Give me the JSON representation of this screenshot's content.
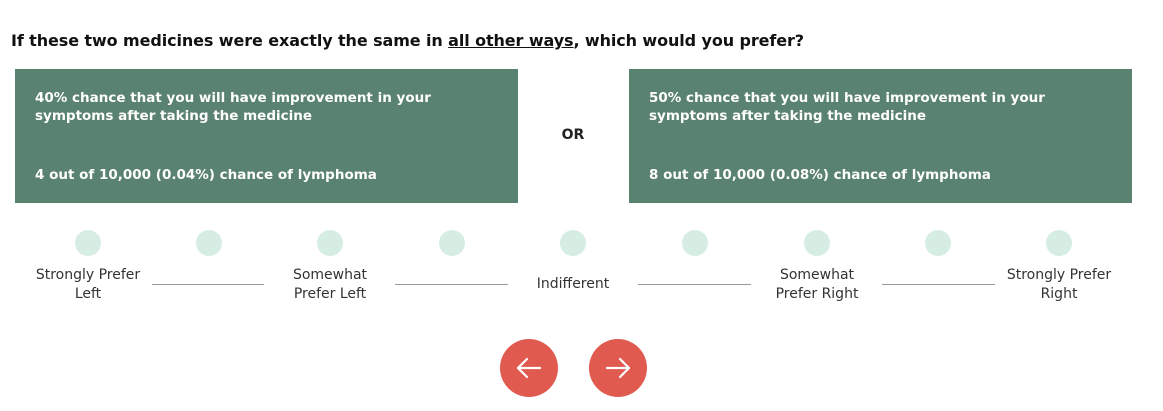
{
  "question": {
    "prefix": "If these two medicines were exactly the same in ",
    "emphasis": "all other ways",
    "suffix": ", which would you prefer?"
  },
  "left_option": {
    "improvement": "40% chance that you will have improvement in your symptoms after taking the medicine",
    "risk": "4 out of 10,000 (0.04%) chance of lymphoma"
  },
  "or_label": "OR",
  "right_option": {
    "improvement": "50% chance that you will have improvement in your symptoms after taking the medicine",
    "risk": "8 out of 10,000 (0.08%) chance of lymphoma"
  },
  "scale": {
    "labels": {
      "strongly_left_1": "Strongly Prefer",
      "strongly_left_2": "Left",
      "somewhat_left_1": "Somewhat",
      "somewhat_left_2": "Prefer Left",
      "indifferent": "Indifferent",
      "somewhat_right_1": "Somewhat",
      "somewhat_right_2": "Prefer Right",
      "strongly_right_1": "Strongly Prefer",
      "strongly_right_2": "Right"
    }
  },
  "colors": {
    "card_bg": "#5a8270",
    "dot": "#d6ede3",
    "nav_button": "#e05a50"
  },
  "icons": {
    "prev": "arrow-left-icon",
    "next": "arrow-right-icon"
  }
}
